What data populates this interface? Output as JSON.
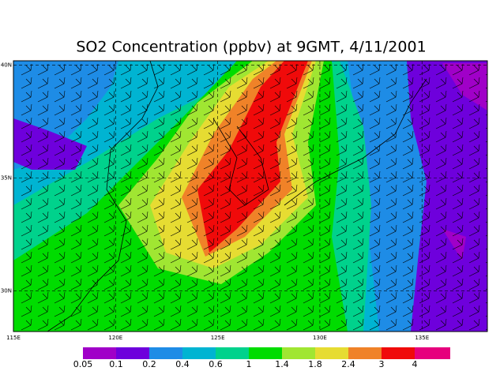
{
  "chart_data": {
    "type": "contour-map",
    "title": "SO2 Concentration (ppbv) at 9GMT, 4/11/2001",
    "xlim": [
      115,
      138.2
    ],
    "ylim": [
      28.2,
      40.2
    ],
    "xticks": [
      {
        "value": 115,
        "label": "115E"
      },
      {
        "value": 120,
        "label": "120E"
      },
      {
        "value": 125,
        "label": "125E"
      },
      {
        "value": 130,
        "label": "130E"
      },
      {
        "value": 135,
        "label": "135E"
      }
    ],
    "yticks": [
      {
        "value": 30,
        "label": "30N"
      },
      {
        "value": 35,
        "label": "35N"
      },
      {
        "value": 40,
        "label": "40N"
      }
    ],
    "grid": true,
    "colorbar": {
      "levels": [
        0.05,
        0.1,
        0.2,
        0.4,
        0.6,
        1,
        1.4,
        1.8,
        2.4,
        3,
        4
      ],
      "colors": [
        "#a000c8",
        "#6e00dc",
        "#1e8ce6",
        "#00b4d2",
        "#00d28c",
        "#00dc00",
        "#a0e632",
        "#e6dc32",
        "#f08228",
        "#f00a0a",
        "#e6007d"
      ]
    }
  }
}
